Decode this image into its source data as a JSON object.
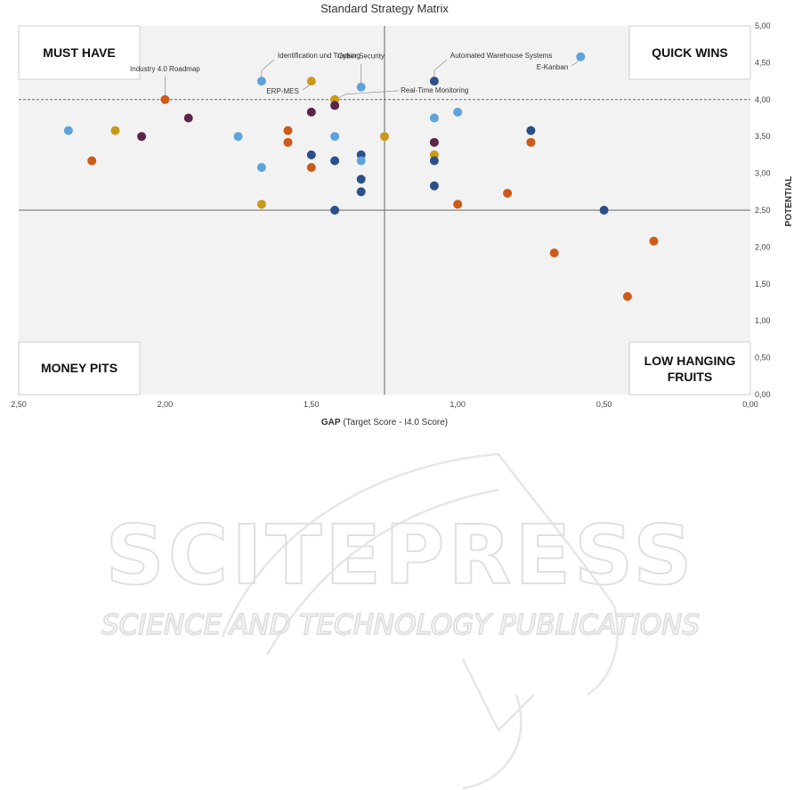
{
  "chart_data": {
    "type": "scatter",
    "title": "Standard Strategy Matrix",
    "xlabel_bold": "GAP",
    "xlabel_rest": "(Target Score - I4.0 Score)",
    "ylabel": "POTENTIAL",
    "xlim": [
      2.5,
      0.0
    ],
    "ylim": [
      0.0,
      5.0
    ],
    "x_reversed": true,
    "x_ticks": [
      "2,50",
      "2,00",
      "1,50",
      "1,00",
      "0,50",
      "0,00"
    ],
    "y_ticks": [
      "0,00",
      "0,50",
      "1,00",
      "1,50",
      "2,00",
      "2,50",
      "3,00",
      "3,50",
      "4,00",
      "4,50",
      "5,00"
    ],
    "x_tick_values": [
      2.5,
      2.0,
      1.5,
      1.0,
      0.5,
      0.0
    ],
    "y_tick_values": [
      0,
      0.5,
      1,
      1.5,
      2,
      2.5,
      3,
      3.5,
      4,
      4.5,
      5
    ],
    "quadrant_divider_x": 1.25,
    "quadrant_divider_y": 2.5,
    "threshold_line_y": 4.0,
    "grid": false,
    "quadrants": {
      "top_left": "MUST HAVE",
      "top_right": "QUICK WINS",
      "bottom_left": "MONEY PITS",
      "bottom_right_line1": "LOW HANGING",
      "bottom_right_line2": "FRUITS"
    },
    "colors": {
      "light_blue": "#5ea3db",
      "dark_blue": "#2a4f8a",
      "orange": "#cc5a1a",
      "gold": "#c99a1a",
      "purple": "#5c2448",
      "plot_bg": "#f2f2f2"
    },
    "points": [
      {
        "x": 2.33,
        "y": 3.58,
        "color": "light_blue"
      },
      {
        "x": 2.25,
        "y": 3.17,
        "color": "orange"
      },
      {
        "x": 2.17,
        "y": 3.58,
        "color": "gold"
      },
      {
        "x": 2.08,
        "y": 3.5,
        "color": "purple"
      },
      {
        "x": 2.0,
        "y": 4.0,
        "color": "orange"
      },
      {
        "x": 1.92,
        "y": 3.75,
        "color": "purple"
      },
      {
        "x": 1.75,
        "y": 3.5,
        "color": "light_blue"
      },
      {
        "x": 1.67,
        "y": 4.25,
        "color": "light_blue"
      },
      {
        "x": 1.67,
        "y": 3.08,
        "color": "light_blue"
      },
      {
        "x": 1.67,
        "y": 2.58,
        "color": "gold"
      },
      {
        "x": 1.58,
        "y": 3.58,
        "color": "orange"
      },
      {
        "x": 1.58,
        "y": 3.42,
        "color": "orange"
      },
      {
        "x": 1.5,
        "y": 4.25,
        "color": "gold"
      },
      {
        "x": 1.5,
        "y": 3.83,
        "color": "purple"
      },
      {
        "x": 1.5,
        "y": 3.25,
        "color": "dark_blue"
      },
      {
        "x": 1.5,
        "y": 3.08,
        "color": "orange"
      },
      {
        "x": 1.42,
        "y": 4.0,
        "color": "gold"
      },
      {
        "x": 1.42,
        "y": 3.92,
        "color": "purple"
      },
      {
        "x": 1.42,
        "y": 3.5,
        "color": "light_blue"
      },
      {
        "x": 1.42,
        "y": 3.17,
        "color": "dark_blue"
      },
      {
        "x": 1.42,
        "y": 2.5,
        "color": "dark_blue"
      },
      {
        "x": 1.33,
        "y": 4.17,
        "color": "light_blue"
      },
      {
        "x": 1.33,
        "y": 3.25,
        "color": "dark_blue"
      },
      {
        "x": 1.33,
        "y": 3.17,
        "color": "light_blue"
      },
      {
        "x": 1.33,
        "y": 2.92,
        "color": "dark_blue"
      },
      {
        "x": 1.33,
        "y": 2.75,
        "color": "dark_blue"
      },
      {
        "x": 1.25,
        "y": 3.5,
        "color": "gold"
      },
      {
        "x": 1.08,
        "y": 4.25,
        "color": "dark_blue"
      },
      {
        "x": 1.08,
        "y": 3.75,
        "color": "light_blue"
      },
      {
        "x": 1.08,
        "y": 3.42,
        "color": "purple"
      },
      {
        "x": 1.08,
        "y": 3.25,
        "color": "gold"
      },
      {
        "x": 1.08,
        "y": 3.17,
        "color": "dark_blue"
      },
      {
        "x": 1.08,
        "y": 2.83,
        "color": "dark_blue"
      },
      {
        "x": 1.0,
        "y": 3.83,
        "color": "light_blue"
      },
      {
        "x": 1.0,
        "y": 2.58,
        "color": "orange"
      },
      {
        "x": 0.83,
        "y": 2.73,
        "color": "orange"
      },
      {
        "x": 0.75,
        "y": 3.58,
        "color": "dark_blue"
      },
      {
        "x": 0.75,
        "y": 3.42,
        "color": "orange"
      },
      {
        "x": 0.67,
        "y": 1.92,
        "color": "orange"
      },
      {
        "x": 0.58,
        "y": 4.58,
        "color": "light_blue"
      },
      {
        "x": 0.5,
        "y": 2.5,
        "color": "dark_blue"
      },
      {
        "x": 0.42,
        "y": 1.33,
        "color": "orange"
      },
      {
        "x": 0.33,
        "y": 2.08,
        "color": "orange"
      }
    ],
    "annotations": [
      {
        "text": "Industry 4.0 Roadmap",
        "x": 2.0,
        "y": 4.0,
        "side": "above"
      },
      {
        "text": "Identification und Tracking",
        "x": 1.67,
        "y": 4.25,
        "side": "above-right"
      },
      {
        "text": "ERP-MES",
        "x": 1.5,
        "y": 4.25,
        "side": "below-left"
      },
      {
        "text": "Cyber Security",
        "x": 1.33,
        "y": 4.17,
        "side": "above"
      },
      {
        "text": "Real-Time Monitoring",
        "x": 1.42,
        "y": 4.0,
        "side": "right"
      },
      {
        "text": "Automated Warehouse Systems",
        "x": 1.08,
        "y": 4.25,
        "side": "above-right"
      },
      {
        "text": "E-Kanban",
        "x": 0.58,
        "y": 4.58,
        "side": "below-left"
      }
    ]
  },
  "watermark": {
    "line1": "SCITEPRESS",
    "line2": "SCIENCE AND TECHNOLOGY PUBLICATIONS"
  }
}
